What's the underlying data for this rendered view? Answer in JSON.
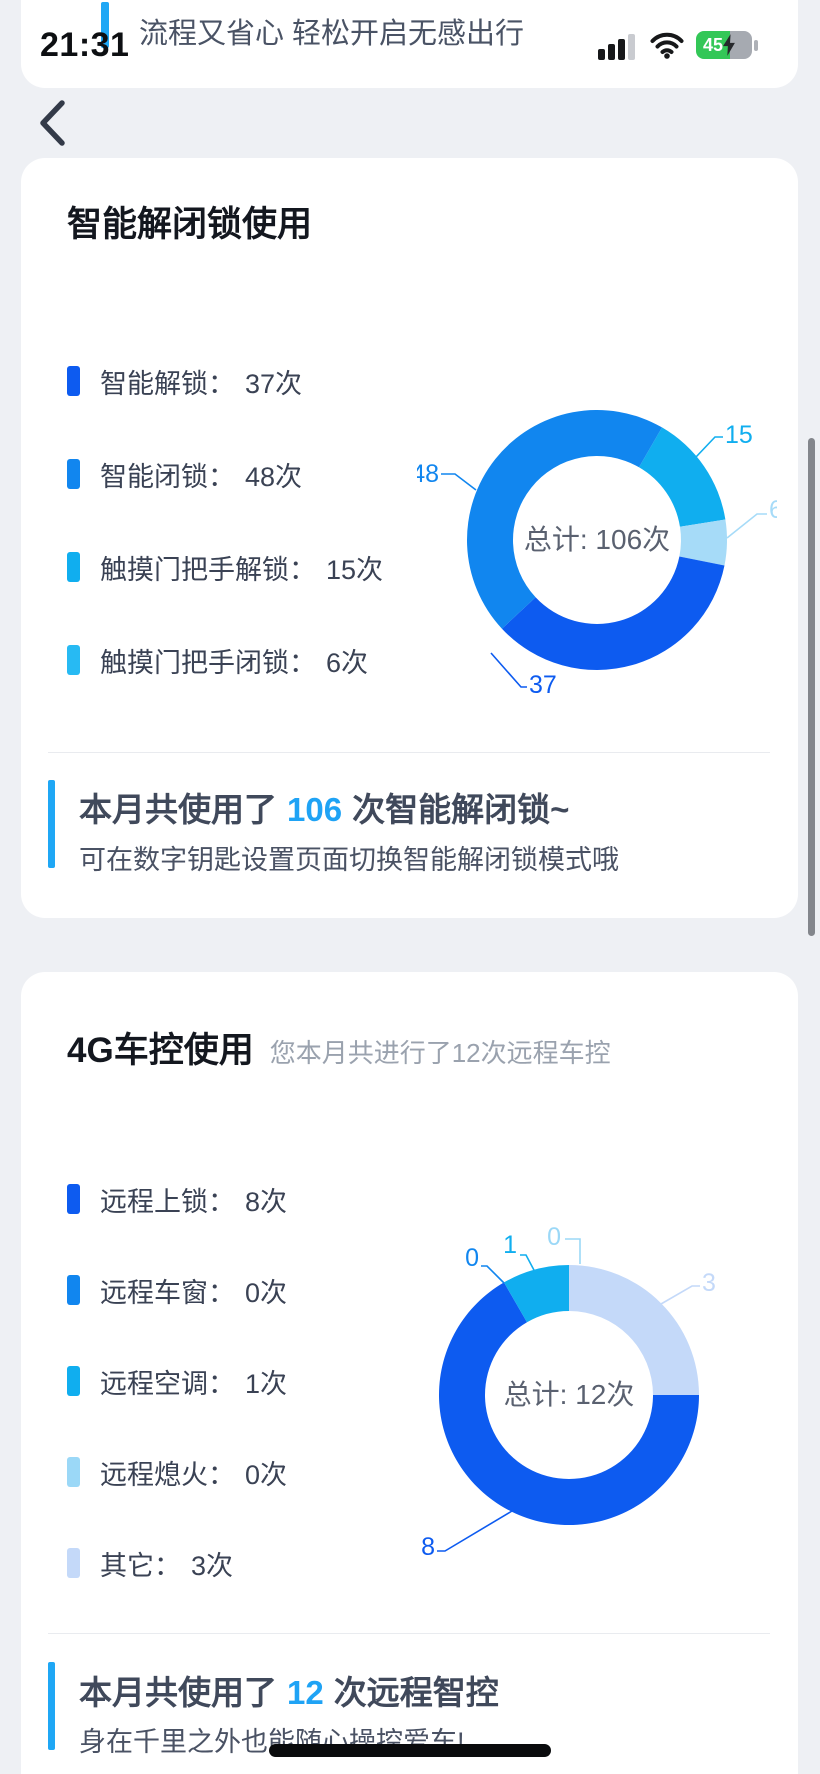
{
  "status_bar": {
    "time": "21:31",
    "battery": "45"
  },
  "banner": {
    "text": "流程又省心 轻松开启无感出行"
  },
  "card1": {
    "title": "智能解闭锁使用",
    "legend": [
      {
        "label": "智能解锁：",
        "count": "37次",
        "color": "#0D5BF0"
      },
      {
        "label": "智能闭锁：",
        "count": "48次",
        "color": "#1186EF"
      },
      {
        "label": "触摸门把手解锁：",
        "count": "15次",
        "color": "#10AEEF"
      },
      {
        "label": "触摸门把手闭锁：",
        "count": "6次",
        "color": "#27BAF3"
      }
    ],
    "center_label": "总计: 106次",
    "summary": {
      "prefix": "本月共使用了",
      "highlight": "106",
      "suffix": "次智能解闭锁~",
      "note": "可在数字钥匙设置页面切换智能解闭锁模式哦"
    }
  },
  "card2": {
    "title": "4G车控使用",
    "subtitle": "您本月共进行了12次远程车控",
    "legend": [
      {
        "label": "远程上锁：",
        "count": "8次",
        "color": "#0D5BF0"
      },
      {
        "label": "远程车窗：",
        "count": "0次",
        "color": "#1186EF"
      },
      {
        "label": "远程空调：",
        "count": "1次",
        "color": "#10AEEF"
      },
      {
        "label": "远程熄火：",
        "count": "0次",
        "color": "#9BD8F7"
      },
      {
        "label": "其它：",
        "count": "3次",
        "color": "#C4D9F9"
      }
    ],
    "center_label": "总计: 12次",
    "summary": {
      "prefix": "本月共使用了",
      "highlight": "12",
      "suffix": "次远程智控",
      "note": "身在千里之外也能随心操控爱车!"
    }
  },
  "chart_data": [
    {
      "type": "pie",
      "subtype": "donut",
      "title": "智能解闭锁使用",
      "labels": [
        "智能解锁",
        "智能闭锁",
        "触摸门把手解锁",
        "触摸门把手闭锁"
      ],
      "values": [
        37,
        48,
        15,
        6
      ],
      "colors": [
        "#0D5BF0",
        "#1186EF",
        "#10AEEF",
        "#A6DBF8"
      ],
      "total": 106,
      "center_label": "总计: 106次",
      "clockwise_order_from_top": [
        "触摸门把手解锁",
        "触摸门把手闭锁",
        "智能解锁",
        "智能闭锁"
      ],
      "start_angle_deg": 30,
      "legend_position": "left"
    },
    {
      "type": "pie",
      "subtype": "donut",
      "title": "4G车控使用",
      "labels": [
        "远程上锁",
        "远程车窗",
        "远程空调",
        "远程熄火",
        "其它"
      ],
      "values": [
        8,
        0,
        1,
        0,
        3
      ],
      "colors": [
        "#0D5BF0",
        "#1186EF",
        "#10AEEF",
        "#9BD8F7",
        "#C4D9F9"
      ],
      "total": 12,
      "center_label": "总计: 12次",
      "clockwise_order_from_top": [
        "其它",
        "远程上锁",
        "远程车窗",
        "远程空调",
        "远程熄火"
      ],
      "start_angle_deg": 0,
      "legend_position": "left"
    }
  ]
}
